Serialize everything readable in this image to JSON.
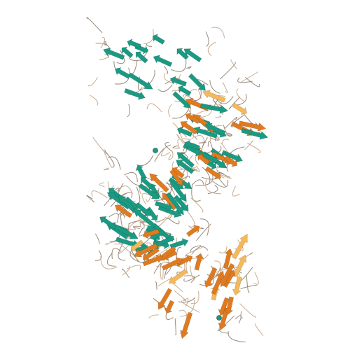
{
  "image": {
    "subject": "protein-structure-ribbon",
    "background_color": "#ffffff",
    "chain_colors": {
      "chain_a": "#1a9a82",
      "chain_b": "#e07a1f",
      "chain_b_light": "#f5b85a",
      "coil": "#c9ad92",
      "coil_dark": "#9a8a7a"
    }
  }
}
